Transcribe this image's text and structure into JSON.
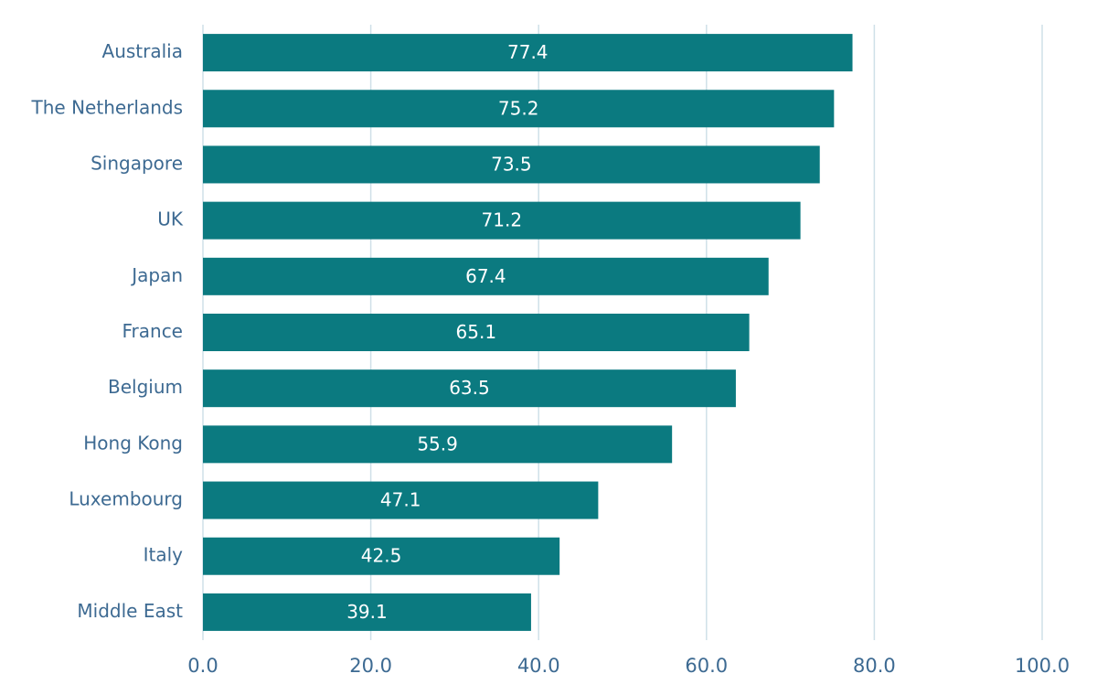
{
  "chart_data": {
    "type": "bar",
    "orientation": "horizontal",
    "categories": [
      "Australia",
      "The Netherlands",
      "Singapore",
      "UK",
      "Japan",
      "France",
      "Belgium",
      "Hong Kong",
      "Luxembourg",
      "Italy",
      "Middle East"
    ],
    "values": [
      77.4,
      75.2,
      73.5,
      71.2,
      67.4,
      65.1,
      63.5,
      55.9,
      47.1,
      42.5,
      39.1
    ],
    "color": "#0b7a80",
    "xlim": [
      0,
      100
    ],
    "xticks": [
      {
        "value": 0,
        "label": "0.0"
      },
      {
        "value": 20,
        "label": "20.0"
      },
      {
        "value": 40,
        "label": "40.0"
      },
      {
        "value": 60,
        "label": "60.0"
      },
      {
        "value": 80,
        "label": "80.0"
      },
      {
        "value": 100,
        "label": "100.0"
      }
    ],
    "grid": true
  }
}
